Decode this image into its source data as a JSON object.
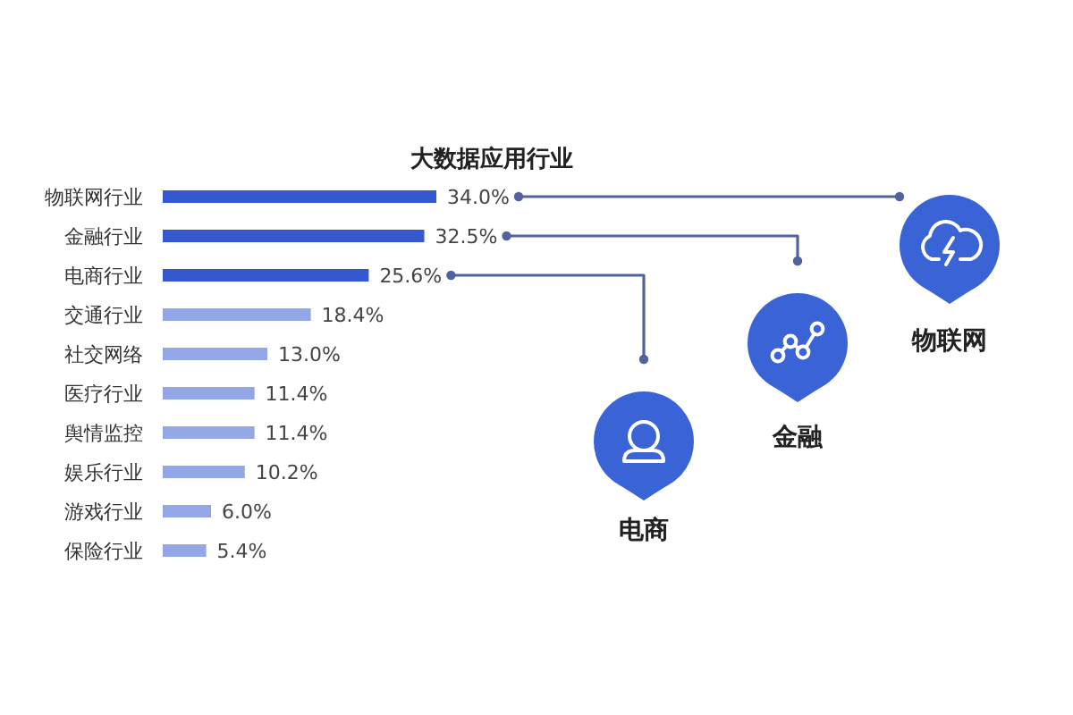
{
  "chart_data": {
    "type": "bar",
    "orientation": "horizontal",
    "title": "大数据应用行业",
    "categories": [
      "物联网行业",
      "金融行业",
      "电商行业",
      "交通行业",
      "社交网络",
      "医疗行业",
      "舆情监控",
      "娱乐行业",
      "游戏行业",
      "保险行业"
    ],
    "values": [
      34.0,
      32.5,
      25.6,
      18.4,
      13.0,
      11.4,
      11.4,
      10.2,
      6.0,
      5.4
    ],
    "value_labels": [
      "34.0%",
      "32.5%",
      "25.6%",
      "18.4%",
      "13.0%",
      "11.4%",
      "11.4%",
      "10.2%",
      "6.0%",
      "5.4%"
    ],
    "colors": [
      "#3557cf",
      "#3557cf",
      "#3557cf",
      "#93a7e6",
      "#93a7e6",
      "#93a7e6",
      "#93a7e6",
      "#93a7e6",
      "#93a7e6",
      "#93a7e6"
    ],
    "annotations": [
      "物联网",
      "金融",
      "电商"
    ]
  }
}
